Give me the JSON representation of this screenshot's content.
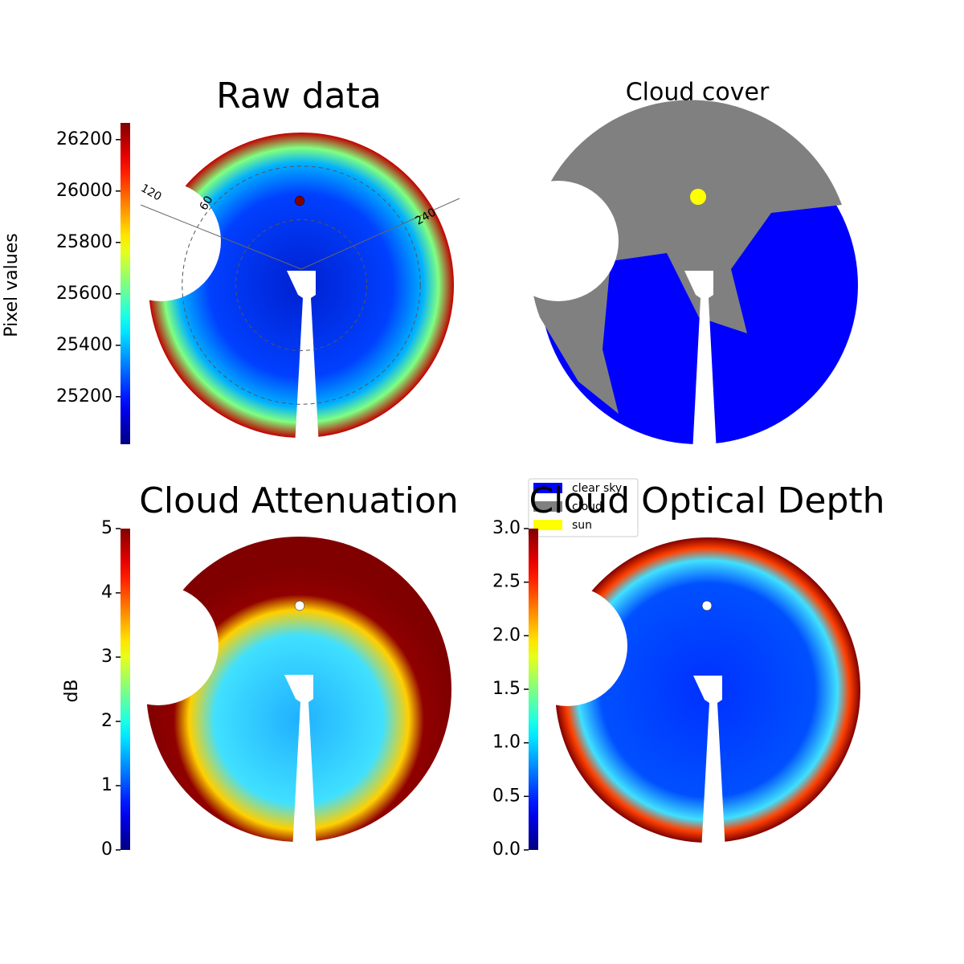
{
  "chart_data": [
    {
      "type": "image",
      "title": "Raw data",
      "colorbar_label": "Pixel values",
      "colormap": "jet",
      "clim": [
        25015,
        26265
      ],
      "cticks": [
        25200,
        25400,
        25600,
        25800,
        26000,
        26200
      ],
      "annotations": [
        "120",
        "60",
        "240"
      ]
    },
    {
      "type": "image",
      "title": "Cloud cover",
      "legend": [
        {
          "name": "clear sky",
          "color": "#0000ff"
        },
        {
          "name": "cloud",
          "color": "#808080"
        },
        {
          "name": "sun",
          "color": "#ffff00"
        }
      ]
    },
    {
      "type": "image",
      "title": "Cloud Attenuation",
      "colorbar_label": "dB",
      "colormap": "jet",
      "clim": [
        0,
        5
      ],
      "cticks": [
        0,
        1,
        2,
        3,
        4,
        5
      ]
    },
    {
      "type": "image",
      "title": "Cloud Optical Depth",
      "colormap": "jet",
      "clim": [
        0,
        3
      ],
      "cticks": [
        {
          "value": 0,
          "label": "0.0"
        },
        0.5,
        {
          "value": 1,
          "label": "1.0"
        },
        1.5,
        {
          "value": 2,
          "label": "2.0"
        },
        2.5,
        {
          "value": 3,
          "label": "3.0"
        }
      ]
    }
  ]
}
